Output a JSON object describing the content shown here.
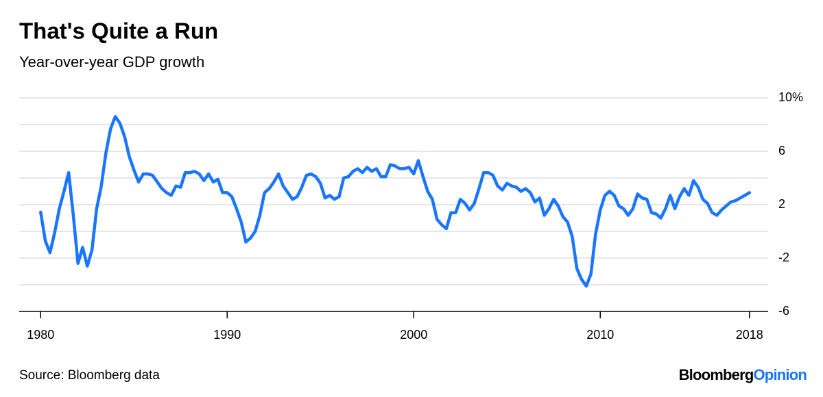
{
  "chart_data": {
    "type": "line",
    "title": "That's Quite a Run",
    "subtitle": "Year-over-year GDP growth",
    "source": "Source: Bloomberg data",
    "logo": {
      "first": "Bloomberg",
      "second": "Opinion"
    },
    "color": "#1a75ff",
    "grid": true,
    "ylim": [
      -6,
      10
    ],
    "yticks": [
      -6,
      -2,
      2,
      6,
      {
        "value": 10,
        "label": "10%"
      }
    ],
    "minor_yticks": [
      -4,
      0,
      4,
      8
    ],
    "xlim": [
      1978.85,
      2019
    ],
    "xticks": [
      1980,
      1990,
      2000,
      2010,
      2018
    ],
    "x": [
      1980,
      1980.25,
      1980.5,
      1980.75,
      1981,
      1981.25,
      1981.5,
      1981.75,
      1982,
      1982.25,
      1982.5,
      1982.75,
      1983,
      1983.25,
      1983.5,
      1983.75,
      1984,
      1984.25,
      1984.5,
      1984.75,
      1985,
      1985.25,
      1985.5,
      1985.75,
      1986,
      1986.25,
      1986.5,
      1986.75,
      1987,
      1987.25,
      1987.5,
      1987.75,
      1988,
      1988.25,
      1988.5,
      1988.75,
      1989,
      1989.25,
      1989.5,
      1989.75,
      1990,
      1990.25,
      1990.5,
      1990.75,
      1991,
      1991.25,
      1991.5,
      1991.75,
      1992,
      1992.25,
      1992.5,
      1992.75,
      1993,
      1993.25,
      1993.5,
      1993.75,
      1994,
      1994.25,
      1994.5,
      1994.75,
      1995,
      1995.25,
      1995.5,
      1995.75,
      1996,
      1996.25,
      1996.5,
      1996.75,
      1997,
      1997.25,
      1997.5,
      1997.75,
      1998,
      1998.25,
      1998.5,
      1998.75,
      1999,
      1999.25,
      1999.5,
      1999.75,
      2000,
      2000.25,
      2000.5,
      2000.75,
      2001,
      2001.25,
      2001.5,
      2001.75,
      2002,
      2002.25,
      2002.5,
      2002.75,
      2003,
      2003.25,
      2003.5,
      2003.75,
      2004,
      2004.25,
      2004.5,
      2004.75,
      2005,
      2005.25,
      2005.5,
      2005.75,
      2006,
      2006.25,
      2006.5,
      2006.75,
      2007,
      2007.25,
      2007.5,
      2007.75,
      2008,
      2008.25,
      2008.5,
      2008.75,
      2009,
      2009.25,
      2009.5,
      2009.75,
      2010,
      2010.25,
      2010.5,
      2010.75,
      2011,
      2011.25,
      2011.5,
      2011.75,
      2012,
      2012.25,
      2012.5,
      2012.75,
      2013,
      2013.25,
      2013.5,
      2013.75,
      2014,
      2014.25,
      2014.5,
      2014.75,
      2015,
      2015.25,
      2015.5,
      2015.75,
      2016,
      2016.25,
      2016.5,
      2016.75,
      2017,
      2017.25,
      2017.5,
      2017.75,
      2018
    ],
    "values": [
      1.44,
      -0.72,
      -1.6,
      -0.1,
      1.7,
      3.0,
      4.4,
      1.2,
      -2.4,
      -1.2,
      -2.6,
      -1.4,
      1.7,
      3.4,
      5.9,
      7.7,
      8.6,
      8.1,
      7.1,
      5.6,
      4.6,
      3.7,
      4.3,
      4.3,
      4.2,
      3.7,
      3.2,
      2.9,
      2.7,
      3.4,
      3.3,
      4.4,
      4.4,
      4.5,
      4.3,
      3.8,
      4.3,
      3.7,
      3.9,
      2.9,
      2.9,
      2.6,
      1.7,
      0.7,
      -0.8,
      -0.5,
      0.0,
      1.2,
      2.9,
      3.2,
      3.7,
      4.3,
      3.4,
      2.9,
      2.4,
      2.6,
      3.3,
      4.2,
      4.3,
      4.1,
      3.6,
      2.5,
      2.7,
      2.4,
      2.6,
      4.0,
      4.1,
      4.5,
      4.7,
      4.4,
      4.8,
      4.5,
      4.7,
      4.1,
      4.1,
      5.0,
      4.9,
      4.7,
      4.7,
      4.8,
      4.3,
      5.3,
      4.1,
      3.0,
      2.4,
      0.9,
      0.5,
      0.2,
      1.4,
      1.4,
      2.4,
      2.1,
      1.6,
      2.1,
      3.2,
      4.4,
      4.4,
      4.2,
      3.4,
      3.1,
      3.6,
      3.4,
      3.3,
      3.0,
      3.2,
      2.9,
      2.2,
      2.5,
      1.2,
      1.7,
      2.4,
      1.9,
      1.1,
      0.7,
      -0.4,
      -2.8,
      -3.6,
      -4.1,
      -3.2,
      -0.2,
      1.6,
      2.7,
      3.0,
      2.7,
      1.9,
      1.7,
      1.2,
      1.7,
      2.8,
      2.5,
      2.4,
      1.4,
      1.3,
      1.0,
      1.7,
      2.7,
      1.7,
      2.6,
      3.2,
      2.7,
      3.8,
      3.3,
      2.4,
      2.1,
      1.4,
      1.2,
      1.6,
      1.9,
      2.2,
      2.3,
      2.5,
      2.7,
      2.9
    ]
  }
}
